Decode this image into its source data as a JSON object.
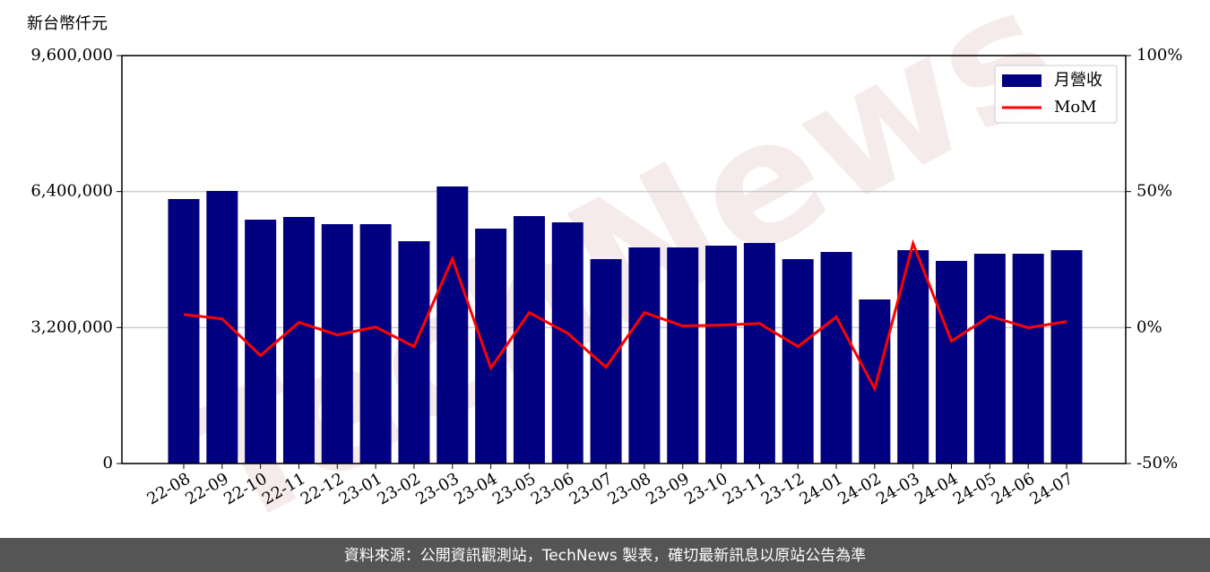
{
  "chart_data": {
    "type": "bar",
    "y_label": "新台幣仟元",
    "watermark": "TechNews",
    "footer": "資料來源：公開資訊觀測站，TechNews 製表，確切最新訊息以原站公告為準",
    "categories": [
      "22-08",
      "22-09",
      "22-10",
      "22-11",
      "22-12",
      "23-01",
      "23-02",
      "23-03",
      "23-04",
      "23-05",
      "23-06",
      "23-07",
      "23-08",
      "23-09",
      "23-10",
      "23-11",
      "23-12",
      "24-01",
      "24-02",
      "24-03",
      "24-04",
      "24-05",
      "24-06",
      "24-07"
    ],
    "series": [
      {
        "name": "月營收",
        "type": "bar",
        "color": "#000080",
        "values": [
          6224000,
          6414000,
          5739000,
          5802000,
          5633000,
          5633000,
          5232000,
          6520000,
          5528000,
          5823000,
          5675000,
          4810000,
          5085000,
          5085000,
          5127000,
          5190000,
          4810000,
          4979000,
          3861000,
          5021000,
          4768000,
          4937000,
          4937000,
          5021000
        ]
      },
      {
        "name": "MoM",
        "type": "line",
        "axis": "y2",
        "color": "#ff0000",
        "values": [
          4.8,
          3.2,
          -10.3,
          1.9,
          -2.7,
          0.2,
          -7.0,
          25.3,
          -14.9,
          5.5,
          -2.1,
          -14.6,
          5.5,
          0.6,
          0.9,
          1.5,
          -7.0,
          3.9,
          -22.5,
          30.9,
          -5.0,
          4.2,
          -0.1,
          2.2
        ]
      }
    ],
    "ylim": [
      0,
      9600000
    ],
    "yticks": [
      0,
      {
        "value": 3200000,
        "label": "3,200,000"
      },
      {
        "value": 6400000,
        "label": "6,400,000"
      },
      {
        "value": 9600000,
        "label": "9,600,000"
      }
    ],
    "y2lim": [
      -50,
      100
    ],
    "y2ticks": [
      {
        "value": -50,
        "label": "-50%"
      },
      {
        "value": 0,
        "label": "0%"
      },
      {
        "value": 50,
        "label": "50%"
      },
      {
        "value": 100,
        "label": "100%"
      }
    ],
    "grid": true,
    "legend": "upper right"
  }
}
